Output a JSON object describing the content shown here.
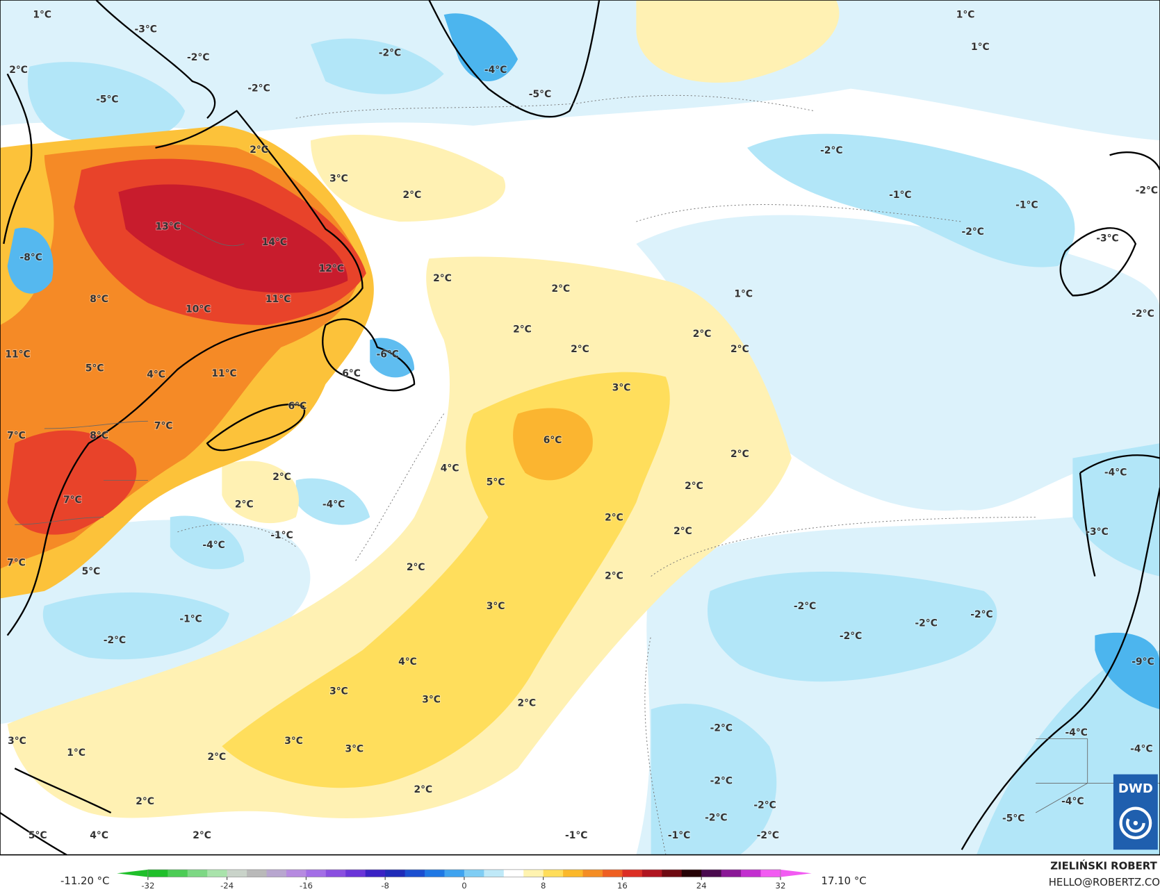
{
  "map_labels": [
    "1°C",
    "-3°C",
    "-2°C",
    "-2°C",
    "2°C",
    "-2°C",
    "-5°C",
    "-4°C",
    "-5°C",
    "1°C",
    "1°C",
    "2°C",
    "3°C",
    "2°C",
    "-2°C",
    "-1°C",
    "-1°C",
    "-2°C",
    "13°C",
    "14°C",
    "-8°C",
    "12°C",
    "2°C",
    "2°C",
    "1°C",
    "8°C",
    "11°C",
    "10°C",
    "2°C",
    "2°C",
    "2°C",
    "2°C",
    "-6°C",
    "11°C",
    "5°C",
    "4°C",
    "11°C",
    "6°C",
    "3°C",
    "6°C",
    "7°C",
    "7°C",
    "8°C",
    "6°C",
    "2°C",
    "4°C",
    "2°C",
    "5°C",
    "2°C",
    "2°C",
    "-4°C",
    "7°C",
    "2°C",
    "-1°C",
    "2°C",
    "-4°C",
    "7°C",
    "5°C",
    "2°C",
    "2°C",
    "3°C",
    "-2°C",
    "-2°C",
    "-2°C",
    "-1°C",
    "-2°C",
    "-2°C",
    "4°C",
    "3°C",
    "3°C",
    "2°C",
    "-2°C",
    "3°C",
    "3°C",
    "3°C",
    "1°C",
    "2°C",
    "-2°C",
    "2°C",
    "2°C",
    "-2°C",
    "-2°C",
    "5°C",
    "4°C",
    "2°C",
    "-1°C",
    "-1°C",
    "-2°C",
    "-4°C",
    "-3°C",
    "-9°C",
    "-4°C",
    "-4°C",
    "-4°C",
    "-5°C",
    "-2°C",
    "-3°C",
    "-2°C"
  ],
  "colorbar": {
    "range": [
      -32,
      32
    ],
    "ticks": [
      -32,
      -24,
      -16,
      -8,
      0,
      8,
      16,
      24,
      32
    ],
    "colors": [
      "#1fbf2a",
      "#4ccc55",
      "#7dd884",
      "#a9e3ab",
      "#c9d3c9",
      "#b9b9b9",
      "#b8a6cf",
      "#b68ae0",
      "#a36ee6",
      "#8a4fe0",
      "#6a35d8",
      "#3a22c4",
      "#1f2bb8",
      "#1b4fd0",
      "#1f78e4",
      "#3fa3ef",
      "#7fcdf4",
      "#bfe9f8",
      "#ffffff",
      "#fff3b0",
      "#ffdd5a",
      "#fbb82a",
      "#f48d24",
      "#ee5f22",
      "#dc2f25",
      "#b01520",
      "#6e0a12",
      "#260306",
      "#4a0a4e",
      "#8a1896",
      "#c22fcf",
      "#f25bf2"
    ],
    "min_label": "-11.20 °C",
    "max_label": "17.10 °C"
  },
  "author": "ZIELIŃSKI ROBERT",
  "contact": "HELLO@ROBERTZ.CO",
  "logo": "DWD"
}
